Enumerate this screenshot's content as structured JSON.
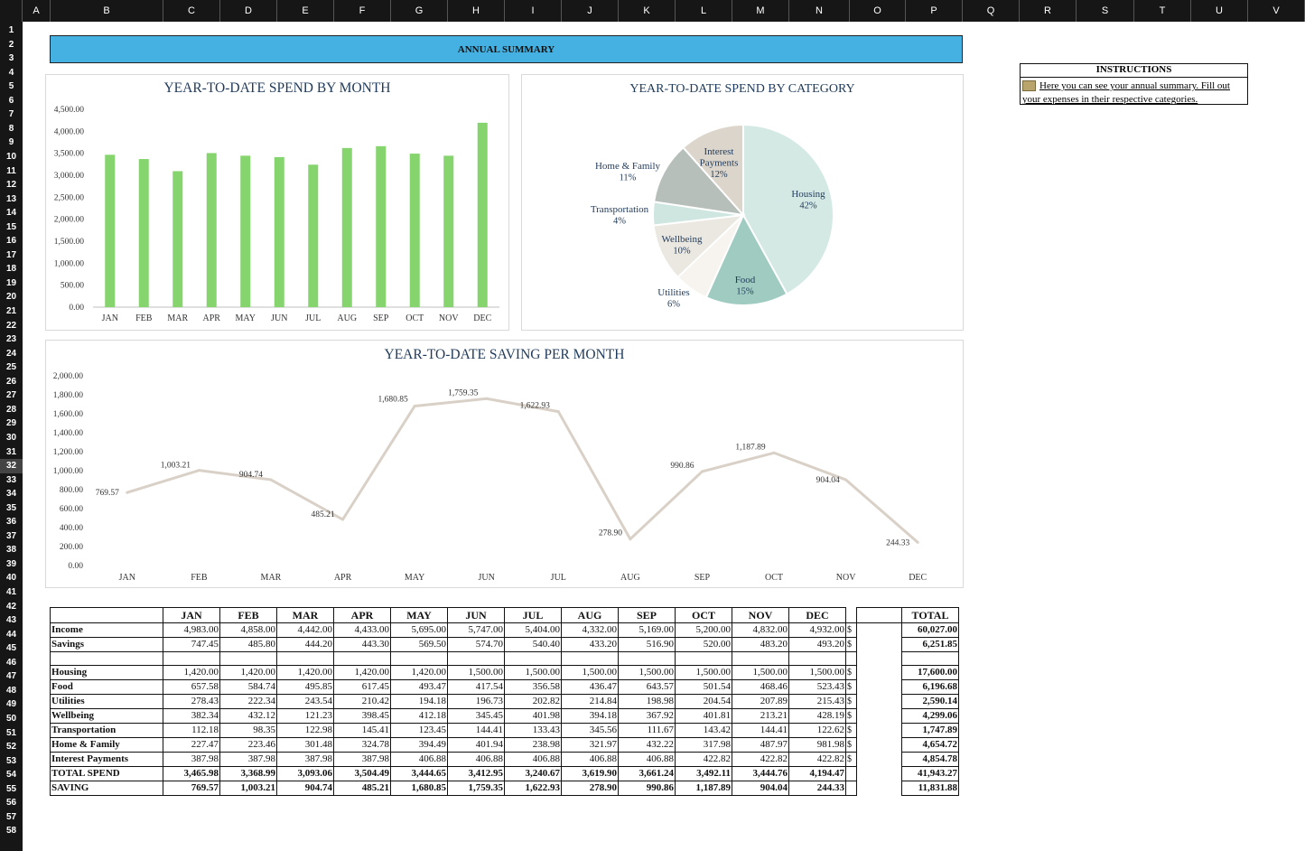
{
  "columns": [
    "A",
    "B",
    "C",
    "D",
    "E",
    "F",
    "G",
    "H",
    "I",
    "J",
    "K",
    "L",
    "M",
    "N",
    "O",
    "P",
    "Q",
    "R",
    "S",
    "T",
    "U",
    "V"
  ],
  "rows": [
    "1",
    "2",
    "3",
    "4",
    "5",
    "6",
    "7",
    "8",
    "9",
    "10",
    "11",
    "12",
    "13",
    "14",
    "15",
    "16",
    "17",
    "18",
    "19",
    "20",
    "21",
    "22",
    "23",
    "24",
    "25",
    "26",
    "27",
    "28",
    "29",
    "30",
    "31",
    "32",
    "33",
    "34",
    "35",
    "36",
    "37",
    "38",
    "39",
    "40",
    "41",
    "42",
    "43",
    "44",
    "45",
    "46",
    "47",
    "48",
    "49",
    "50",
    "51",
    "52",
    "53",
    "54",
    "55",
    "56",
    "57",
    "58"
  ],
  "selected_row": "32",
  "banner": "ANNUAL SUMMARY",
  "instructions": {
    "title": "INSTRUCTIONS",
    "text": "Here you can see your annual summary. Fill out your expenses in their respective categories."
  },
  "colors": {
    "bar": "#85d46e",
    "line": "#d9d1c8",
    "header": "#45b1e3"
  },
  "chart_data": [
    {
      "type": "bar",
      "title": "YEAR-TO-DATE SPEND BY MONTH",
      "categories": [
        "JAN",
        "FEB",
        "MAR",
        "APR",
        "MAY",
        "JUN",
        "JUL",
        "AUG",
        "SEP",
        "OCT",
        "NOV",
        "DEC"
      ],
      "values": [
        3465.98,
        3368.99,
        3093.06,
        3504.49,
        3444.65,
        3412.95,
        3240.67,
        3619.9,
        3661.24,
        3492.11,
        3444.76,
        4194.47
      ],
      "ylim": [
        0,
        4500
      ],
      "yticks": [
        "0.00",
        "500.00",
        "1,000.00",
        "1,500.00",
        "2,000.00",
        "2,500.00",
        "3,000.00",
        "3,500.00",
        "4,000.00",
        "4,500.00"
      ]
    },
    {
      "type": "pie",
      "title": "YEAR-TO-DATE SPEND BY CATEGORY",
      "slices": [
        {
          "name": "Housing",
          "label": "42%",
          "value": 17600.0,
          "color": "#d4e9e4"
        },
        {
          "name": "Food",
          "label": "15%",
          "value": 6196.68,
          "color": "#9fcbc1"
        },
        {
          "name": "Utilities",
          "label": "6%",
          "value": 2590.14,
          "color": "#f7f3ee"
        },
        {
          "name": "Wellbeing",
          "label": "10%",
          "value": 4299.06,
          "color": "#ebe7e1"
        },
        {
          "name": "Transportation",
          "label": "4%",
          "value": 1747.89,
          "color": "#cfe6e0"
        },
        {
          "name": "Home & Family",
          "label": "11%",
          "value": 4654.72,
          "color": "#b7bfba"
        },
        {
          "name": "Interest Payments",
          "label": "12%",
          "value": 4854.78,
          "color": "#dcd5cb"
        }
      ]
    },
    {
      "type": "line",
      "title": "YEAR-TO-DATE SAVING PER MONTH",
      "categories": [
        "JAN",
        "FEB",
        "MAR",
        "APR",
        "MAY",
        "JUN",
        "JUL",
        "AUG",
        "SEP",
        "OCT",
        "NOV",
        "DEC"
      ],
      "values": [
        769.57,
        1003.21,
        904.74,
        485.21,
        1680.85,
        1759.35,
        1622.93,
        278.9,
        990.86,
        1187.89,
        904.04,
        244.33
      ],
      "labels": [
        "769.57",
        "1,003.21",
        "904.74",
        "485.21",
        "1,680.85",
        "1,759.35",
        "1,622.93",
        "278.90",
        "990.86",
        "1,187.89",
        "904.04",
        "244.33"
      ],
      "ylim": [
        0,
        2000
      ],
      "yticks": [
        "0.00",
        "200.00",
        "400.00",
        "600.00",
        "800.00",
        "1,000.00",
        "1,200.00",
        "1,400.00",
        "1,600.00",
        "1,800.00",
        "2,000.00"
      ]
    }
  ],
  "table": {
    "months": [
      "JAN",
      "FEB",
      "MAR",
      "APR",
      "MAY",
      "JUN",
      "JUL",
      "AUG",
      "SEP",
      "OCT",
      "NOV",
      "DEC"
    ],
    "total_header": "TOTAL",
    "currency": "$",
    "income": {
      "label": "Income",
      "values": [
        "4,983.00",
        "4,858.00",
        "4,442.00",
        "4,433.00",
        "5,695.00",
        "5,747.00",
        "5,404.00",
        "4,332.00",
        "5,169.00",
        "5,200.00",
        "4,832.00",
        "4,932.00"
      ],
      "total": "60,027.00"
    },
    "savings": {
      "label": "Savings",
      "values": [
        "747.45",
        "485.80",
        "444.20",
        "443.30",
        "569.50",
        "574.70",
        "540.40",
        "433.20",
        "516.90",
        "520.00",
        "483.20",
        "493.20"
      ],
      "total": "6,251.85"
    },
    "categories": [
      {
        "label": "Housing",
        "values": [
          "1,420.00",
          "1,420.00",
          "1,420.00",
          "1,420.00",
          "1,420.00",
          "1,500.00",
          "1,500.00",
          "1,500.00",
          "1,500.00",
          "1,500.00",
          "1,500.00",
          "1,500.00"
        ],
        "total": "17,600.00"
      },
      {
        "label": "Food",
        "values": [
          "657.58",
          "584.74",
          "495.85",
          "617.45",
          "493.47",
          "417.54",
          "356.58",
          "436.47",
          "643.57",
          "501.54",
          "468.46",
          "523.43"
        ],
        "total": "6,196.68"
      },
      {
        "label": "Utilities",
        "values": [
          "278.43",
          "222.34",
          "243.54",
          "210.42",
          "194.18",
          "196.73",
          "202.82",
          "214.84",
          "198.98",
          "204.54",
          "207.89",
          "215.43"
        ],
        "total": "2,590.14"
      },
      {
        "label": "Wellbeing",
        "values": [
          "382.34",
          "432.12",
          "121.23",
          "398.45",
          "412.18",
          "345.45",
          "401.98",
          "394.18",
          "367.92",
          "401.81",
          "213.21",
          "428.19"
        ],
        "total": "4,299.06"
      },
      {
        "label": "Transportation",
        "values": [
          "112.18",
          "98.35",
          "122.98",
          "145.41",
          "123.45",
          "144.41",
          "133.43",
          "345.56",
          "111.67",
          "143.42",
          "144.41",
          "122.62"
        ],
        "total": "1,747.89"
      },
      {
        "label": "Home & Family",
        "values": [
          "227.47",
          "223.46",
          "301.48",
          "324.78",
          "394.49",
          "401.94",
          "238.98",
          "321.97",
          "432.22",
          "317.98",
          "487.97",
          "981.98"
        ],
        "total": "4,654.72"
      },
      {
        "label": "Interest Payments",
        "values": [
          "387.98",
          "387.98",
          "387.98",
          "387.98",
          "406.88",
          "406.88",
          "406.88",
          "406.88",
          "406.88",
          "422.82",
          "422.82",
          "422.82"
        ],
        "total": "4,854.78"
      }
    ],
    "total_spend": {
      "label": "TOTAL SPEND",
      "values": [
        "3,465.98",
        "3,368.99",
        "3,093.06",
        "3,504.49",
        "3,444.65",
        "3,412.95",
        "3,240.67",
        "3,619.90",
        "3,661.24",
        "3,492.11",
        "3,444.76",
        "4,194.47"
      ],
      "total": "41,943.27"
    },
    "saving": {
      "label": "SAVING",
      "values": [
        "769.57",
        "1,003.21",
        "904.74",
        "485.21",
        "1,680.85",
        "1,759.35",
        "1,622.93",
        "278.90",
        "990.86",
        "1,187.89",
        "904.04",
        "244.33"
      ],
      "total": "11,831.88"
    }
  }
}
